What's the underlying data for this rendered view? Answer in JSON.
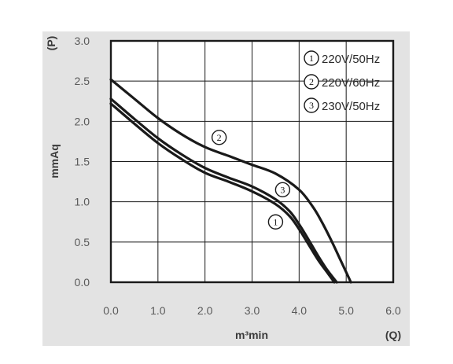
{
  "colors": {
    "background": "#e3e3e3",
    "plot": "#ffffff",
    "line": "#1a1a1a",
    "grid": "#1a1a1a",
    "text": "#5a5a5a"
  },
  "chart_data": {
    "type": "line",
    "title": "",
    "xlabel": "m³min",
    "ylabel": "mmAq",
    "y2label": "(P)",
    "x2label": "(Q)",
    "xlim": [
      0,
      6
    ],
    "ylim": [
      0,
      3
    ],
    "grid": true,
    "legend_position": "top-right",
    "xticks": [
      "0.0",
      "1.0",
      "2.0",
      "3.0",
      "4.0",
      "5.0",
      "6.0"
    ],
    "yticks": [
      "0.0",
      "0.5",
      "1.0",
      "1.5",
      "2.0",
      "2.5",
      "3.0"
    ],
    "series": [
      {
        "marker": "1",
        "name": "220V/50Hz",
        "x": [
          0.0,
          0.5,
          1.0,
          1.5,
          2.0,
          2.5,
          3.0,
          3.5,
          3.8,
          4.0,
          4.2,
          4.4,
          4.6,
          4.75
        ],
        "y": [
          2.22,
          1.97,
          1.73,
          1.53,
          1.36,
          1.25,
          1.13,
          0.97,
          0.82,
          0.66,
          0.47,
          0.28,
          0.12,
          0.0
        ]
      },
      {
        "marker": "2",
        "name": "220V/60Hz",
        "x": [
          0.0,
          0.5,
          1.0,
          1.5,
          2.0,
          2.5,
          3.0,
          3.5,
          4.0,
          4.3,
          4.5,
          4.7,
          4.9,
          5.1
        ],
        "y": [
          2.52,
          2.28,
          2.04,
          1.84,
          1.68,
          1.57,
          1.46,
          1.35,
          1.15,
          0.93,
          0.73,
          0.5,
          0.25,
          0.0
        ]
      },
      {
        "marker": "3",
        "name": "230V/50Hz",
        "x": [
          0.0,
          0.5,
          1.0,
          1.5,
          2.0,
          2.5,
          3.0,
          3.5,
          3.8,
          4.0,
          4.2,
          4.4,
          4.6,
          4.8
        ],
        "y": [
          2.28,
          2.03,
          1.79,
          1.59,
          1.42,
          1.3,
          1.19,
          1.03,
          0.88,
          0.72,
          0.53,
          0.33,
          0.15,
          0.0
        ]
      }
    ]
  }
}
